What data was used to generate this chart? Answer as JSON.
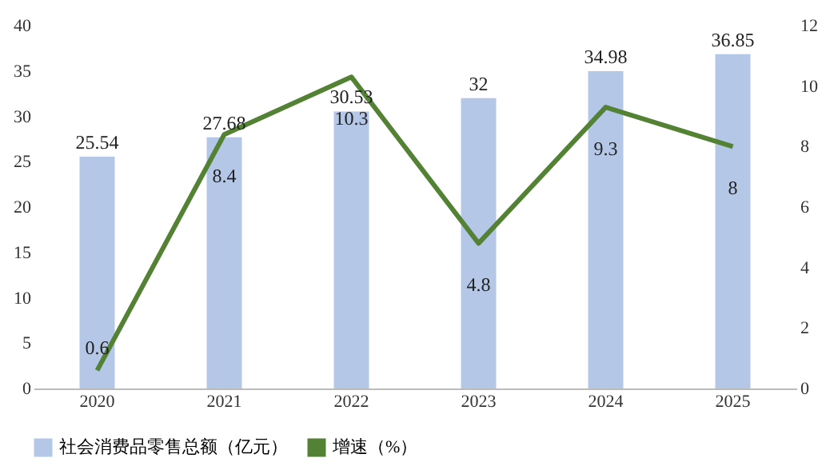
{
  "chart_data": {
    "type": "bar",
    "categories": [
      "2020",
      "2021",
      "2022",
      "2023",
      "2024",
      "2025"
    ],
    "series": [
      {
        "name": "社会消费品零售总额（亿元）",
        "color": "#b4c7e7",
        "values": [
          25.54,
          27.68,
          30.53,
          32,
          34.98,
          36.85
        ]
      },
      {
        "name": "增速（%）",
        "color": "#548235",
        "type": "line",
        "axis": "y2",
        "values": [
          0.6,
          8.4,
          10.3,
          4.8,
          9.3,
          8
        ]
      }
    ],
    "ylim": [
      0,
      40
    ],
    "yticks": [
      0,
      5,
      10,
      15,
      20,
      25,
      30,
      35,
      40
    ],
    "y2lim": [
      0,
      12
    ],
    "y2ticks": [
      0,
      2,
      4,
      6,
      8,
      10,
      12
    ],
    "data_labels": true,
    "grid": false,
    "legend": "bottom"
  }
}
